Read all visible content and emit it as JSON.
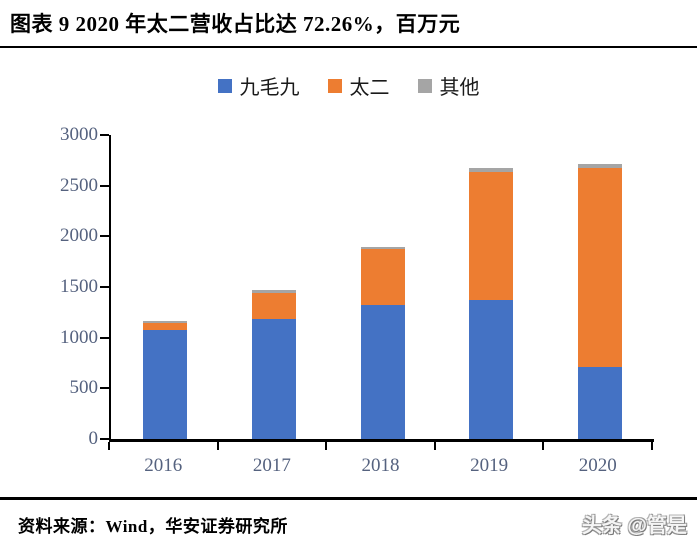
{
  "title": "图表 9 2020 年太二营收占比达 72.26%，百万元",
  "source_note": "资料来源：Wind，华安证券研究所",
  "watermark": "头条 @管是",
  "colors": {
    "series_jiumaojiu": "#4472C4",
    "series_taier": "#ED7D31",
    "series_other": "#A5A5A5",
    "axis_text": "#55627F",
    "axis_line": "#000000",
    "title_text": "#000000"
  },
  "legend": {
    "items": [
      {
        "label": "九毛九",
        "color": "#4472C4"
      },
      {
        "label": "太二",
        "color": "#ED7D31"
      },
      {
        "label": "其他",
        "color": "#A5A5A5"
      }
    ]
  },
  "chart_data": {
    "type": "bar",
    "stacked": true,
    "title": "图表 9 2020 年太二营收占比达 72.26%，百万元",
    "unit": "百万元",
    "categories": [
      "2016",
      "2017",
      "2018",
      "2019",
      "2020"
    ],
    "series": [
      {
        "name": "九毛九",
        "color": "#4472C4",
        "values": [
          1076,
          1187,
          1326,
          1371,
          712
        ]
      },
      {
        "name": "太二",
        "color": "#ED7D31",
        "values": [
          68,
          250,
          545,
          1268,
          1962
        ]
      },
      {
        "name": "其他",
        "color": "#A5A5A5",
        "values": [
          20,
          32,
          22,
          34,
          41
        ]
      }
    ],
    "totals": [
      1164,
      1469,
      1893,
      2673,
      2715
    ],
    "xlabel": "",
    "ylabel": "",
    "ylim": [
      0,
      3000
    ],
    "ytick_step": 500,
    "yticks": [
      0,
      500,
      1000,
      1500,
      2000,
      2500,
      3000
    ],
    "grid": false,
    "legend_position": "top"
  }
}
